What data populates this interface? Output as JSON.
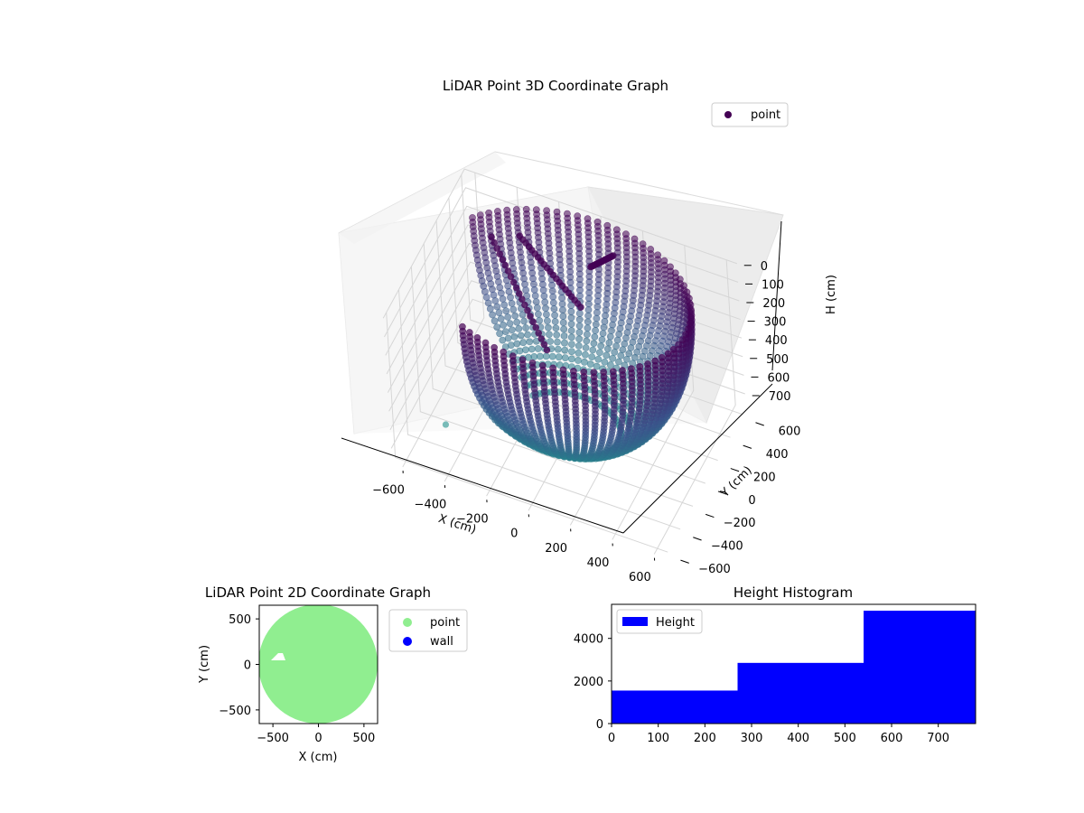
{
  "chart_data": [
    {
      "type": "scatter",
      "projection": "3d",
      "title": "LiDAR Point 3D Coordinate Graph",
      "xlabel": "X (cm)",
      "ylabel": "Y (cm)",
      "zlabel": "H (cm)",
      "xticks": [
        -600,
        -400,
        -200,
        0,
        200,
        400,
        600
      ],
      "yticks": [
        -600,
        -400,
        -200,
        0,
        200,
        400,
        600
      ],
      "zticks": [
        0,
        100,
        200,
        300,
        400,
        500,
        600,
        700
      ],
      "xlim": [
        -650,
        650
      ],
      "ylim": [
        -650,
        650
      ],
      "zlim": [
        0,
        780
      ],
      "z_inverted": true,
      "grid": true,
      "legend": {
        "position": "top-right",
        "entries": [
          "point"
        ]
      },
      "colormap": [
        "#440154",
        "#3b528b",
        "#21918c"
      ],
      "series": [
        {
          "name": "point",
          "description_shape": "bowl",
          "rim_radius": 600,
          "rim_height": 0,
          "bottom_height": 780,
          "opening_angle_deg": [
            150,
            235
          ],
          "arm_tracks": [
            {
              "points": [
                [
                  -420,
                  300,
                  60
                ],
                [
                  -150,
                  200,
                  500
                ]
              ]
            },
            {
              "points": [
                [
                  -350,
                  500,
                  150
                ],
                [
                  -40,
                  400,
                  350
                ]
              ]
            },
            {
              "points": [
                [
                  100,
                  500,
                  80
                ],
                [
                  -20,
                  520,
                  200
                ]
              ]
            }
          ]
        }
      ]
    },
    {
      "type": "scatter",
      "title": "LiDAR Point 2D Coordinate Graph",
      "xlabel": "X (cm)",
      "ylabel": "Y (cm)",
      "xticks": [
        -500,
        0,
        500
      ],
      "yticks": [
        -500,
        0,
        500
      ],
      "xlim": [
        -650,
        650
      ],
      "ylim": [
        -650,
        650
      ],
      "legend": {
        "position": "outside-right",
        "entries": [
          "point",
          "wall"
        ]
      },
      "series": [
        {
          "name": "point",
          "color": "#90ee90",
          "shape": "filled disc",
          "radius": 650,
          "gap_center": [
            -460,
            50
          ]
        },
        {
          "name": "wall",
          "color": "#0000ff",
          "values": []
        }
      ]
    },
    {
      "type": "bar",
      "style": "histogram",
      "title": "Height Histogram",
      "xticks": [
        0,
        100,
        200,
        300,
        400,
        500,
        600,
        700
      ],
      "yticks": [
        0,
        2000,
        4000
      ],
      "xlim": [
        0,
        780
      ],
      "ylim": [
        0,
        5600
      ],
      "legend": {
        "position": "top-left",
        "entries": [
          "Height"
        ]
      },
      "series": [
        {
          "name": "Height",
          "color": "#0000ff",
          "bins": [
            {
              "from": 0,
              "to": 270,
              "value": 1550
            },
            {
              "from": 270,
              "to": 540,
              "value": 2850
            },
            {
              "from": 540,
              "to": 780,
              "value": 5300
            }
          ]
        }
      ]
    }
  ]
}
